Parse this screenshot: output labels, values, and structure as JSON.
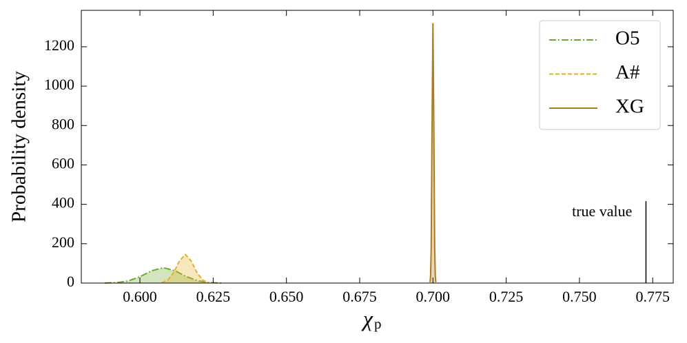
{
  "chart_data": {
    "type": "line",
    "ylabel": "Probability density",
    "xlabel": "χ",
    "xlabel_subscript": "p",
    "xlim": [
      0.58,
      0.782
    ],
    "ylim": [
      0,
      1385
    ],
    "xticks": [
      {
        "value": 0.6,
        "label": "0.600"
      },
      {
        "value": 0.625,
        "label": "0.625"
      },
      {
        "value": 0.65,
        "label": "0.650"
      },
      {
        "value": 0.675,
        "label": "0.675"
      },
      {
        "value": 0.7,
        "label": "0.700"
      },
      {
        "value": 0.725,
        "label": "0.725"
      },
      {
        "value": 0.75,
        "label": "0.750"
      },
      {
        "value": 0.775,
        "label": "0.775"
      }
    ],
    "yticks": [
      0,
      200,
      400,
      600,
      800,
      1000,
      1200
    ],
    "legend": "upper right",
    "series": [
      {
        "name": "O5",
        "color": "#6aaa2a",
        "dash": "10 3 2 3",
        "x": [
          0.588,
          0.592,
          0.596,
          0.6,
          0.604,
          0.608,
          0.612,
          0.616,
          0.62,
          0.624,
          0.628
        ],
        "values": [
          0.3,
          2.2,
          10.6,
          32.1,
          62.5,
          78,
          62.5,
          32.1,
          10.6,
          2.2,
          0.3
        ]
      },
      {
        "name": "A#",
        "color": "#e8b021",
        "dash": "6 3",
        "x": [
          0.6075,
          0.6095,
          0.6115,
          0.6135,
          0.6155,
          0.6175,
          0.6195,
          0.6215,
          0.6235
        ],
        "values": [
          2.4,
          14.6,
          52.3,
          112.4,
          145,
          112.4,
          52.3,
          14.6,
          2.4
        ]
      },
      {
        "name": "XG",
        "color": "#b07a1a",
        "dash": "",
        "x": [
          0.699,
          0.6992,
          0.6994,
          0.6997,
          0.7,
          0.7003,
          0.7006,
          0.7008,
          0.701
        ],
        "values": [
          5.1,
          37.7,
          178.6,
          800.6,
          1320,
          800.6,
          178.6,
          37.7,
          5.1
        ]
      }
    ],
    "annotation": {
      "text": "true value",
      "x": 0.7727,
      "y": 416
    }
  }
}
